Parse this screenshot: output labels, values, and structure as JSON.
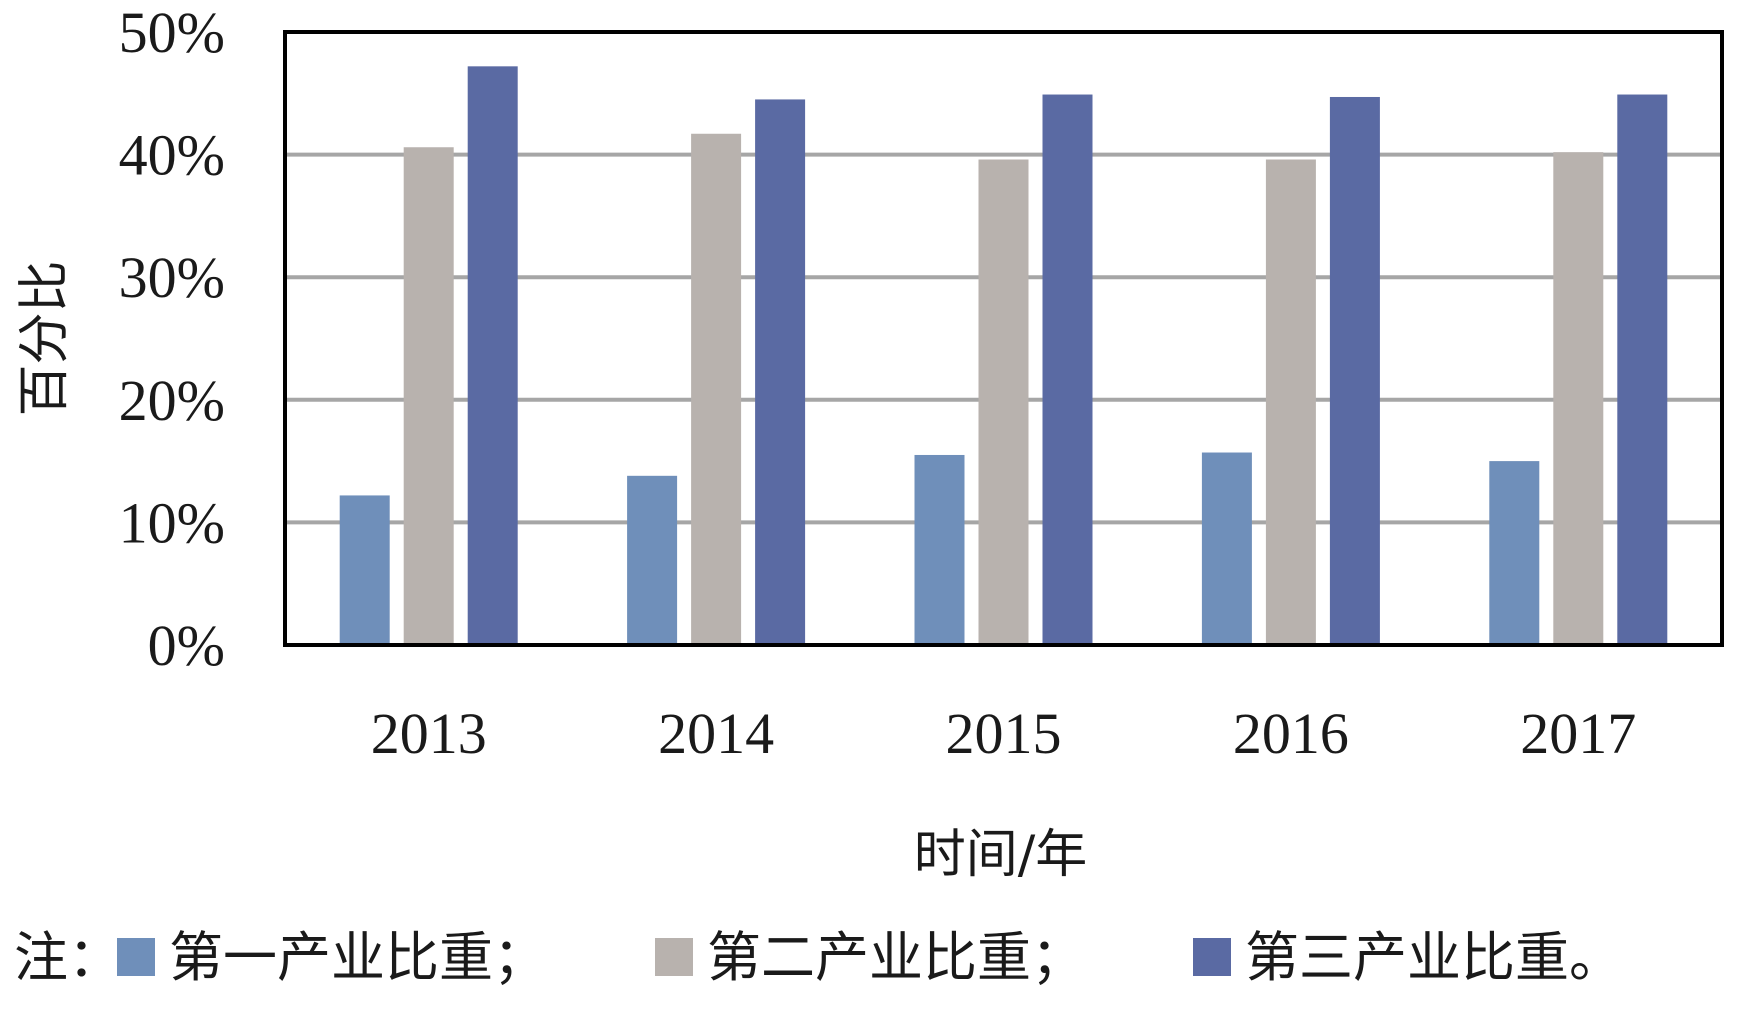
{
  "chart_data": {
    "type": "bar",
    "categories": [
      "2013",
      "2014",
      "2015",
      "2016",
      "2017"
    ],
    "series": [
      {
        "name": "第一产业比重；",
        "color": "#6f8fba",
        "values": [
          12.2,
          13.8,
          15.5,
          15.7,
          15.0
        ]
      },
      {
        "name": "第二产业比重；",
        "color": "#b8b2ae",
        "values": [
          40.6,
          41.7,
          39.6,
          39.6,
          40.2
        ]
      },
      {
        "name": "第三产业比重。",
        "color": "#5a6aa3",
        "values": [
          47.2,
          44.5,
          44.9,
          44.7,
          44.9
        ]
      }
    ],
    "ylim": [
      0,
      50
    ],
    "yticks": [
      "0%",
      "10%",
      "20%",
      "30%",
      "40%",
      "50%"
    ],
    "ylabel": "百分比",
    "xlabel": "时间/年",
    "legend_prefix": "注：",
    "grid": true,
    "legend_position": "bottom"
  }
}
